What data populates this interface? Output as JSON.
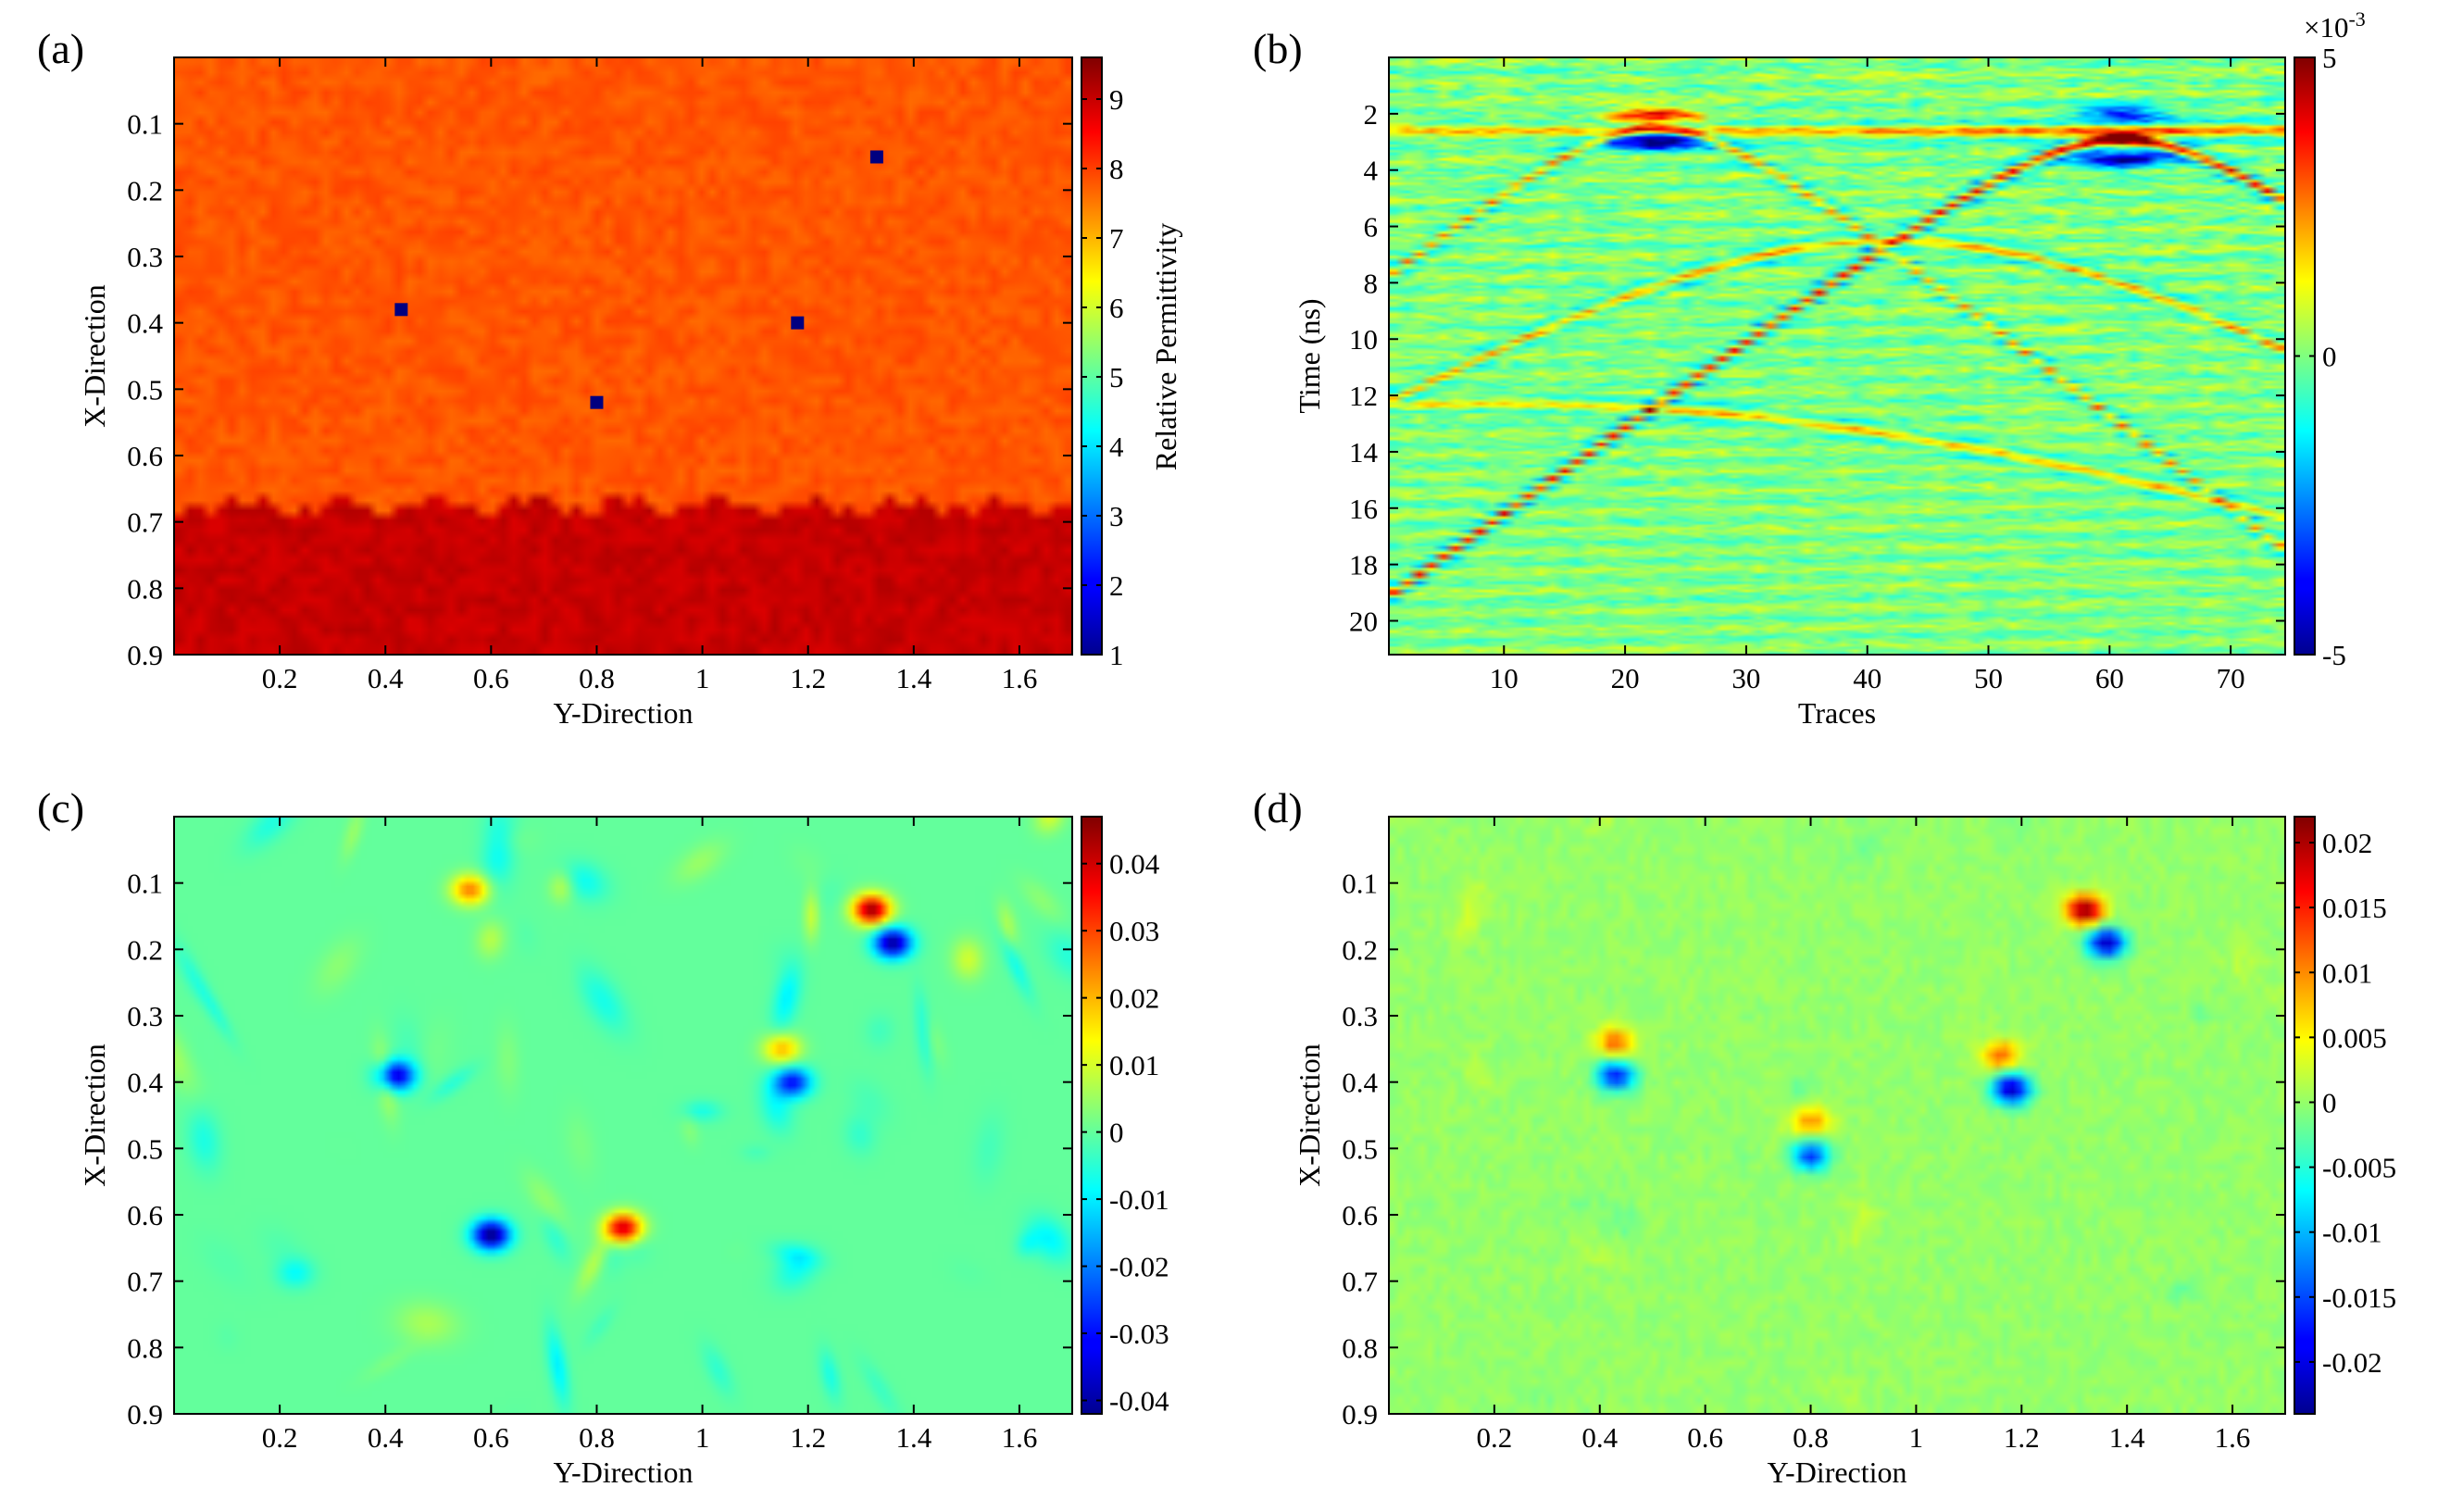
{
  "figure": {
    "panels": [
      {
        "id": "a",
        "letter": "(a)"
      },
      {
        "id": "b",
        "letter": "(b)"
      },
      {
        "id": "c",
        "letter": "(c)"
      },
      {
        "id": "d",
        "letter": "(d)"
      }
    ]
  },
  "chart_data": [
    {
      "panel": "(a)",
      "type": "heatmap",
      "description_kind": "relative permittivity model",
      "xlabel": "Y-Direction",
      "ylabel": "X-Direction",
      "xlim": [
        0,
        1.7
      ],
      "ylim": [
        0.9,
        0
      ],
      "x_ticks": [
        "0.2",
        "0.4",
        "0.6",
        "0.8",
        "1",
        "1.2",
        "1.4",
        "1.6"
      ],
      "y_ticks": [
        "0.1",
        "0.2",
        "0.3",
        "0.4",
        "0.5",
        "0.6",
        "0.7",
        "0.8",
        "0.9"
      ],
      "colorbar": {
        "label": "Relative Permittivity",
        "range": [
          1,
          9.6
        ],
        "ticks": [
          "1",
          "2",
          "3",
          "4",
          "5",
          "6",
          "7",
          "8",
          "9"
        ]
      },
      "layers": [
        {
          "name": "upper",
          "permittivity": 7.8,
          "x_range": [
            0,
            0.68
          ]
        },
        {
          "name": "lower",
          "permittivity": 9.0,
          "x_range": [
            0.68,
            0.9
          ]
        }
      ],
      "targets": [
        {
          "y": 0.43,
          "x": 0.38,
          "permittivity": 1
        },
        {
          "y": 0.8,
          "x": 0.52,
          "permittivity": 1
        },
        {
          "y": 1.18,
          "x": 0.4,
          "permittivity": 1
        },
        {
          "y": 1.33,
          "x": 0.15,
          "permittivity": 1
        }
      ]
    },
    {
      "panel": "(b)",
      "type": "heatmap",
      "description_kind": "GPR B-scan",
      "xlabel": "Traces",
      "ylabel": "Time (ns)",
      "xlim": [
        0.5,
        74.5
      ],
      "ylim": [
        21.2,
        0
      ],
      "x_ticks": [
        "10",
        "20",
        "30",
        "40",
        "50",
        "60",
        "70"
      ],
      "y_ticks": [
        "2",
        "4",
        "6",
        "8",
        "10",
        "12",
        "14",
        "16",
        "18",
        "20"
      ],
      "colorbar": {
        "exponent_label": "×10",
        "exponent_value": "-3",
        "range": [
          -5,
          5
        ],
        "ticks": [
          "5",
          "0",
          "-5"
        ]
      },
      "features": [
        {
          "trace": 22.5,
          "time_ns": 2.1,
          "amplitude": 4.2
        },
        {
          "trace": 22.5,
          "time_ns": 3.0,
          "amplitude": -4.5
        },
        {
          "trace": 61,
          "time_ns": 2.0,
          "amplitude": -3.5
        },
        {
          "trace": 61,
          "time_ns": 2.9,
          "amplitude": 5.0
        },
        {
          "trace": 61,
          "time_ns": 3.6,
          "amplitude": -5.0
        }
      ]
    },
    {
      "panel": "(c)",
      "type": "heatmap",
      "description_kind": "reconstructed image",
      "xlabel": "Y-Direction",
      "ylabel": "X-Direction",
      "xlim": [
        0,
        1.7
      ],
      "ylim": [
        0.9,
        0
      ],
      "x_ticks": [
        "0.2",
        "0.4",
        "0.6",
        "0.8",
        "1",
        "1.2",
        "1.4",
        "1.6"
      ],
      "y_ticks": [
        "0.1",
        "0.2",
        "0.3",
        "0.4",
        "0.5",
        "0.6",
        "0.7",
        "0.8",
        "0.9"
      ],
      "colorbar": {
        "range": [
          -0.042,
          0.047
        ],
        "ticks": [
          "0.04",
          "0.03",
          "0.02",
          "0.01",
          "0",
          "-0.01",
          "-0.02",
          "-0.03",
          "-0.04"
        ]
      },
      "features": [
        {
          "y": 1.32,
          "x": 0.14,
          "value": 0.045
        },
        {
          "y": 1.36,
          "x": 0.19,
          "value": -0.04
        },
        {
          "y": 0.6,
          "x": 0.63,
          "value": -0.042
        },
        {
          "y": 0.85,
          "x": 0.62,
          "value": 0.042
        },
        {
          "y": 0.42,
          "x": 0.39,
          "value": -0.035
        },
        {
          "y": 0.56,
          "x": 0.11,
          "value": 0.025
        },
        {
          "y": 1.15,
          "x": 0.35,
          "value": 0.02
        },
        {
          "y": 1.17,
          "x": 0.4,
          "value": -0.03
        }
      ]
    },
    {
      "panel": "(d)",
      "type": "heatmap",
      "description_kind": "reconstructed image",
      "xlabel": "Y-Direction",
      "ylabel": "X-Direction",
      "xlim": [
        0,
        1.7
      ],
      "ylim": [
        0.9,
        0
      ],
      "x_ticks": [
        "0.2",
        "0.4",
        "0.6",
        "0.8",
        "1",
        "1.2",
        "1.4",
        "1.6"
      ],
      "y_ticks": [
        "0.1",
        "0.2",
        "0.3",
        "0.4",
        "0.5",
        "0.6",
        "0.7",
        "0.8",
        "0.9"
      ],
      "colorbar": {
        "range": [
          -0.024,
          0.022
        ],
        "ticks": [
          "0.02",
          "0.015",
          "0.01",
          "0.005",
          "0",
          "-0.005",
          "-0.01",
          "-0.015",
          "-0.02"
        ]
      },
      "features": [
        {
          "y": 1.32,
          "x": 0.14,
          "value": 0.022
        },
        {
          "y": 1.36,
          "x": 0.19,
          "value": -0.022
        },
        {
          "y": 1.16,
          "x": 0.36,
          "value": 0.012
        },
        {
          "y": 1.18,
          "x": 0.41,
          "value": -0.022
        },
        {
          "y": 0.43,
          "x": 0.34,
          "value": 0.012
        },
        {
          "y": 0.43,
          "x": 0.39,
          "value": -0.018
        },
        {
          "y": 0.8,
          "x": 0.46,
          "value": 0.01
        },
        {
          "y": 0.8,
          "x": 0.51,
          "value": -0.016
        }
      ]
    }
  ]
}
